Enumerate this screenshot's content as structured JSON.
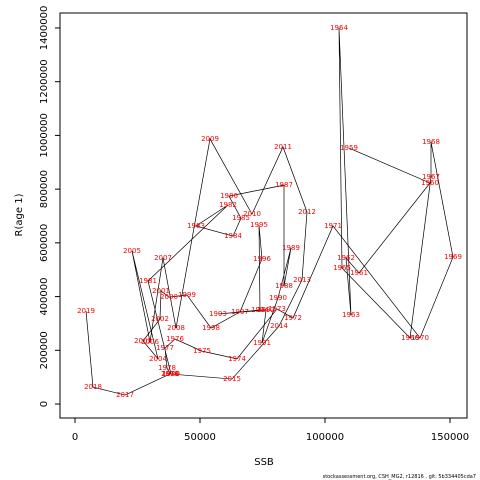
{
  "chart_data": {
    "type": "line",
    "x_label": "SSB",
    "y_label": "R(age 1)",
    "footer": "stockassessment.org, CSH_MG2, r12816 , git: 5b334405cda7",
    "color": "#000000",
    "label_color": "#ff0000",
    "labels": [
      "1959",
      "1960",
      "1961",
      "1962",
      "1963",
      "1964",
      "1965",
      "1966",
      "1967",
      "1968",
      "1969",
      "1970",
      "1971",
      "1972",
      "1973",
      "1974",
      "1975",
      "1976",
      "1977",
      "1978",
      "1979",
      "1980",
      "1981",
      "1982",
      "1983",
      "1984",
      "1985",
      "1986",
      "1987",
      "1988",
      "1989",
      "1990",
      "1991",
      "1992",
      "1993",
      "1994",
      "1995",
      "1996",
      "1997",
      "1998",
      "1999",
      "2000",
      "2001",
      "2002",
      "2003",
      "2004",
      "2005",
      "2006",
      "2007",
      "2008",
      "2009",
      "2010",
      "2011",
      "2012",
      "2013",
      "2014",
      "2015",
      "2016",
      "2017",
      "2018",
      "2019"
    ],
    "x": [
      109600,
      142000,
      113600,
      108400,
      110400,
      105600,
      106800,
      134000,
      142400,
      142400,
      151200,
      138000,
      103200,
      87200,
      80800,
      64800,
      50800,
      40000,
      36000,
      36800,
      38000,
      38400,
      29200,
      61200,
      48400,
      63200,
      66400,
      61600,
      83600,
      83600,
      86400,
      81200,
      74800,
      76400,
      57200,
      74000,
      73600,
      74800,
      66000,
      54400,
      44800,
      37600,
      34400,
      34000,
      27200,
      33200,
      22800,
      30000,
      35200,
      40400,
      54000,
      70800,
      83200,
      92800,
      90800,
      81600,
      62800,
      38000,
      20000,
      7200,
      4400
    ],
    "values": [
      953000,
      823000,
      488000,
      543600,
      331000,
      1400000,
      506000,
      246000,
      845000,
      975000,
      547000,
      246000,
      663000,
      320000,
      354000,
      168000,
      197000,
      242000,
      208000,
      134000,
      112000,
      112000,
      458000,
      741000,
      663000,
      625000,
      692000,
      774000,
      815000,
      439000,
      581000,
      395000,
      227000,
      350000,
      335000,
      350000,
      666000,
      540000,
      343000,
      283000,
      406000,
      398000,
      421000,
      316000,
      235000,
      168000,
      570000,
      231000,
      544000,
      283000,
      987000,
      707000,
      957000,
      715000,
      462000,
      290000,
      93000,
      112000,
      33500,
      63000,
      346000
    ],
    "xlim": [
      -6000,
      156800
    ],
    "ylim": [
      -52000,
      1455700
    ],
    "xticks": [
      0,
      50000,
      100000,
      150000
    ],
    "yticks": [
      0,
      200000,
      400000,
      600000,
      800000,
      1000000,
      1200000,
      1400000
    ]
  }
}
